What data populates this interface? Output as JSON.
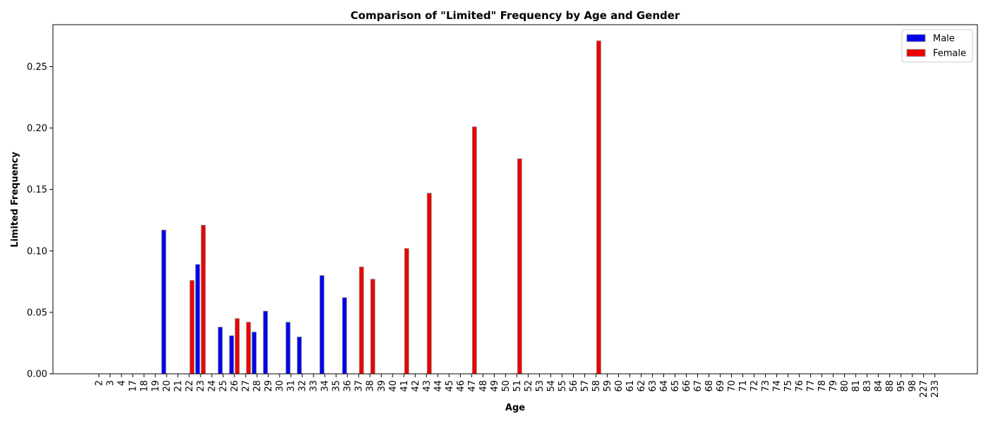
{
  "chart_data": {
    "type": "bar",
    "title": "Comparison of \"Limited\" Frequency by Age and Gender",
    "xlabel": "Age",
    "ylabel": "Limited Frequency",
    "ylim": [
      0,
      0.2841
    ],
    "yticks": [
      0.0,
      0.05,
      0.1,
      0.15,
      0.2,
      0.25
    ],
    "ytick_labels": [
      "0.00",
      "0.05",
      "0.10",
      "0.15",
      "0.20",
      "0.25"
    ],
    "grid": false,
    "legend_position": "top-right",
    "categories": [
      "2",
      "3",
      "4",
      "17",
      "18",
      "19",
      "20",
      "21",
      "22",
      "23",
      "24",
      "25",
      "26",
      "27",
      "28",
      "29",
      "30",
      "31",
      "32",
      "33",
      "34",
      "35",
      "36",
      "37",
      "38",
      "39",
      "40",
      "41",
      "42",
      "43",
      "44",
      "45",
      "46",
      "47",
      "48",
      "49",
      "50",
      "51",
      "52",
      "53",
      "54",
      "55",
      "56",
      "57",
      "58",
      "59",
      "60",
      "61",
      "62",
      "63",
      "64",
      "65",
      "66",
      "67",
      "68",
      "69",
      "70",
      "71",
      "72",
      "73",
      "74",
      "75",
      "76",
      "77",
      "78",
      "79",
      "80",
      "81",
      "83",
      "84",
      "88",
      "95",
      "98",
      "227",
      "233"
    ],
    "series": [
      {
        "name": "Male",
        "color": "#0000ee",
        "values": [
          0,
          0,
          0,
          0,
          0,
          0,
          0.117,
          0,
          0,
          0.089,
          0,
          0.038,
          0.031,
          0,
          0.034,
          0.051,
          0,
          0.042,
          0.03,
          0,
          0.08,
          0,
          0.062,
          0,
          0,
          0,
          0,
          0,
          0,
          0,
          0,
          0,
          0,
          0,
          0,
          0,
          0,
          0,
          0,
          0,
          0,
          0,
          0,
          0,
          0,
          0,
          0,
          0,
          0,
          0,
          0,
          0,
          0,
          0,
          0,
          0,
          0,
          0,
          0,
          0,
          0,
          0,
          0,
          0,
          0,
          0,
          0,
          0,
          0,
          0,
          0,
          0,
          0,
          0,
          0
        ]
      },
      {
        "name": "Female",
        "color": "#ee0000",
        "values": [
          0,
          0,
          0,
          0,
          0,
          0,
          0,
          0,
          0.076,
          0.121,
          0,
          0,
          0.045,
          0.042,
          0,
          0,
          0,
          0,
          0,
          0,
          0,
          0,
          0,
          0.087,
          0.077,
          0,
          0,
          0.102,
          0,
          0.147,
          0,
          0,
          0,
          0.201,
          0,
          0,
          0,
          0.175,
          0,
          0,
          0,
          0,
          0,
          0,
          0.271,
          0,
          0,
          0,
          0,
          0,
          0,
          0,
          0,
          0,
          0,
          0,
          0,
          0,
          0,
          0,
          0,
          0,
          0,
          0,
          0,
          0,
          0,
          0,
          0,
          0,
          0,
          0,
          0,
          0,
          0
        ]
      }
    ]
  }
}
